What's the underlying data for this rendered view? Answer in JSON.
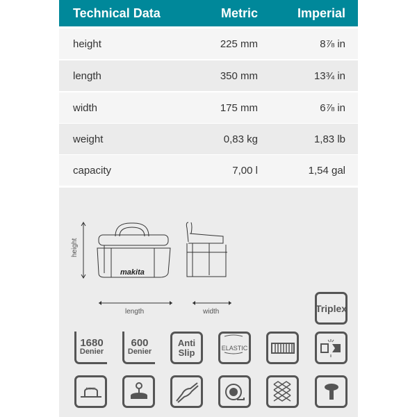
{
  "table": {
    "headers": [
      "Technical Data",
      "Metric",
      "Imperial"
    ],
    "rows": [
      [
        "height",
        "225 mm",
        "8⅞ in"
      ],
      [
        "length",
        "350 mm",
        "13¾ in"
      ],
      [
        "width",
        "175 mm",
        "6⅞ in"
      ],
      [
        "weight",
        "0,83 kg",
        "1,83 lb"
      ],
      [
        "capacity",
        "7,00 l",
        "1,54 gal"
      ]
    ]
  },
  "diagram": {
    "height_label": "height",
    "length_label": "length",
    "width_label": "width",
    "brand": "makita"
  },
  "features": {
    "triplex": "Triplex",
    "denier1680": {
      "num": "1680",
      "unit": "Denier"
    },
    "denier600": {
      "num": "600",
      "unit": "Denier"
    },
    "antislip": {
      "line1": "Anti",
      "line2": "Slip"
    },
    "elastic": "ELASTIC"
  },
  "colors": {
    "header": "#00889a",
    "icon": "#555555"
  }
}
